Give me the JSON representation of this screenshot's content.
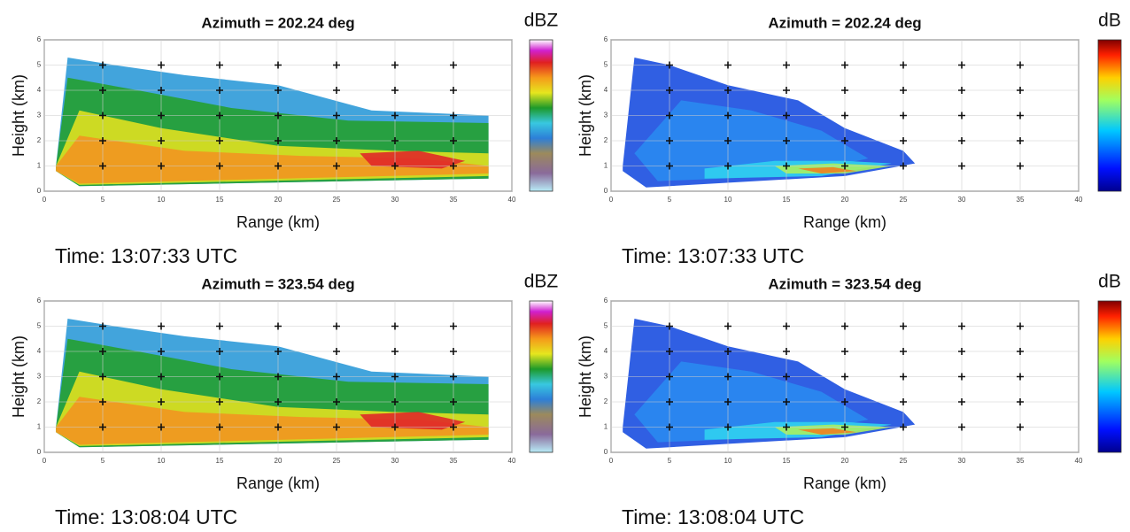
{
  "chart_data": [
    {
      "type": "rhi",
      "title": "Azimuth = 202.24 deg",
      "xlabel": "Range (km)",
      "ylabel": "Height (km)",
      "colorbar_label": "dBZ",
      "time": "Time: 13:07:33 UTC",
      "xlim": [
        0,
        40
      ],
      "ylim": [
        0,
        6
      ],
      "xticks": [
        0,
        5,
        10,
        15,
        20,
        25,
        30,
        35,
        40
      ],
      "yticks": [
        0,
        1,
        2,
        3,
        4,
        5,
        6
      ],
      "grid": true
    },
    {
      "type": "rhi",
      "title": "Azimuth = 202.24 deg",
      "xlabel": "Range (km)",
      "ylabel": "Height (km)",
      "colorbar_label": "dB",
      "time": "Time: 13:07:33 UTC",
      "xlim": [
        0,
        40
      ],
      "ylim": [
        0,
        6
      ],
      "xticks": [
        0,
        5,
        10,
        15,
        20,
        25,
        30,
        35,
        40
      ],
      "yticks": [
        0,
        1,
        2,
        3,
        4,
        5,
        6
      ],
      "grid": true
    },
    {
      "type": "rhi",
      "title": "Azimuth = 323.54 deg",
      "xlabel": "Range (km)",
      "ylabel": "Height (km)",
      "colorbar_label": "dBZ",
      "time": "Time: 13:08:04 UTC",
      "xlim": [
        0,
        40
      ],
      "ylim": [
        0,
        6
      ],
      "xticks": [
        0,
        5,
        10,
        15,
        20,
        25,
        30,
        35,
        40
      ],
      "yticks": [
        0,
        1,
        2,
        3,
        4,
        5,
        6
      ],
      "grid": true
    },
    {
      "type": "rhi",
      "title": "Azimuth = 323.54 deg",
      "xlabel": "Range (km)",
      "ylabel": "Height (km)",
      "colorbar_label": "dB",
      "time": "Time: 13:08:04 UTC",
      "xlim": [
        0,
        40
      ],
      "ylim": [
        0,
        6
      ],
      "xticks": [
        0,
        5,
        10,
        15,
        20,
        25,
        30,
        35,
        40
      ],
      "yticks": [
        0,
        1,
        2,
        3,
        4,
        5,
        6
      ],
      "grid": true
    }
  ]
}
